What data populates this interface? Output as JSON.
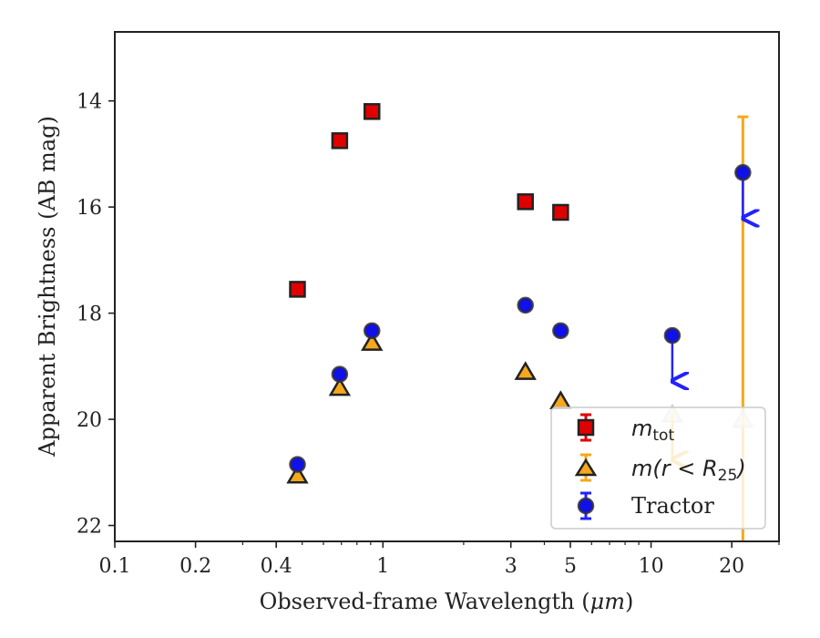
{
  "chart_data": {
    "type": "scatter",
    "xscale": "log",
    "xlim": [
      0.1,
      30
    ],
    "ylim": [
      22.3,
      12.7
    ],
    "y_inverted": true,
    "xlabel": "Observed-frame Wavelength (μm)",
    "xlabel_parts": {
      "pre": "Observed-frame Wavelength (",
      "unit": "μm",
      "post": ")"
    },
    "ylabel": "Apparent Brightness (AB mag)",
    "x_ticks": [
      {
        "value": 0.1,
        "label": "0.1"
      },
      {
        "value": 0.2,
        "label": "0.2"
      },
      {
        "value": 0.4,
        "label": "0.4"
      },
      {
        "value": 1,
        "label": "1"
      },
      {
        "value": 3,
        "label": "3"
      },
      {
        "value": 5,
        "label": "5"
      },
      {
        "value": 10,
        "label": "10"
      },
      {
        "value": 20,
        "label": "20"
      }
    ],
    "y_ticks": [
      {
        "value": 14,
        "label": "14"
      },
      {
        "value": 16,
        "label": "16"
      },
      {
        "value": 18,
        "label": "18"
      },
      {
        "value": 20,
        "label": "20"
      },
      {
        "value": 22,
        "label": "22"
      }
    ],
    "series": [
      {
        "name": "m_tot",
        "legend": {
          "italic": "m",
          "sub": "tot",
          "rest": ""
        },
        "marker": "square",
        "color": "#e00000",
        "points": [
          {
            "x": 0.48,
            "y": 17.55
          },
          {
            "x": 0.69,
            "y": 14.75
          },
          {
            "x": 0.91,
            "y": 14.2
          },
          {
            "x": 3.4,
            "y": 15.9
          },
          {
            "x": 4.6,
            "y": 16.1
          }
        ]
      },
      {
        "name": "m(r < R25)",
        "legend": {
          "italic": "m",
          "sub": "25",
          "rest": "(r < R"
        },
        "marker": "triangle",
        "color": "#f5a81c",
        "points": [
          {
            "x": 0.48,
            "y": 21.05
          },
          {
            "x": 0.69,
            "y": 19.4
          },
          {
            "x": 0.91,
            "y": 18.55
          },
          {
            "x": 3.4,
            "y": 19.1
          },
          {
            "x": 4.6,
            "y": 19.65
          },
          {
            "x": 12,
            "y": 19.9,
            "upper_limit": true
          },
          {
            "x": 22,
            "y": 20.0,
            "err_low": 14.3,
            "err_high": 22.3
          }
        ]
      },
      {
        "name": "Tractor",
        "legend": {
          "text": "Tractor"
        },
        "marker": "circle",
        "color": "#1010e8",
        "points": [
          {
            "x": 0.48,
            "y": 20.85
          },
          {
            "x": 0.69,
            "y": 19.15
          },
          {
            "x": 0.91,
            "y": 18.33
          },
          {
            "x": 3.4,
            "y": 17.85
          },
          {
            "x": 4.6,
            "y": 18.33
          },
          {
            "x": 12,
            "y": 18.42,
            "upper_limit": true
          },
          {
            "x": 22,
            "y": 15.35,
            "upper_limit": true
          }
        ]
      }
    ],
    "legend_position": "lower-right"
  }
}
